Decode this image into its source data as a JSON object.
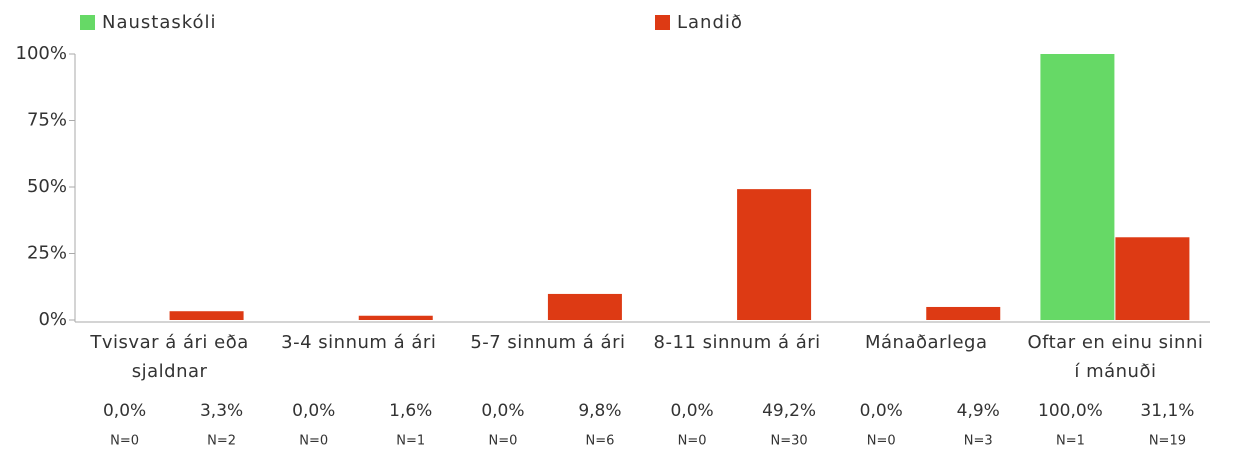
{
  "chart_data": {
    "type": "bar",
    "categories": [
      "Tvisvar á ári eða sjaldnar",
      "3-4 sinnum á ári",
      "5-7 sinnum á ári",
      "8-11 sinnum á ári",
      "Mánaðarlega",
      "Oftar en einu sinni í mánuði"
    ],
    "series": [
      {
        "name": "Naustaskóli",
        "color": "#66d966",
        "values": [
          0,
          0,
          0,
          0,
          0,
          100
        ],
        "value_labels": [
          "0,0%",
          "0,0%",
          "0,0%",
          "0,0%",
          "0,0%",
          "100,0%"
        ],
        "n_labels": [
          "N=0",
          "N=0",
          "N=0",
          "N=0",
          "N=0",
          "N=1"
        ]
      },
      {
        "name": "Landið",
        "color": "#dd3a14",
        "values": [
          3.3,
          1.6,
          9.8,
          49.2,
          4.9,
          31.1
        ],
        "value_labels": [
          "3,3%",
          "1,6%",
          "9,8%",
          "49,2%",
          "4,9%",
          "31,1%"
        ],
        "n_labels": [
          "N=2",
          "N=1",
          "N=6",
          "N=30",
          "N=3",
          "N=19"
        ]
      }
    ],
    "ylim": [
      0,
      100
    ],
    "yticks": [
      {
        "value": 0,
        "label": "0%"
      },
      {
        "value": 25,
        "label": "25%"
      },
      {
        "value": 50,
        "label": "50%"
      },
      {
        "value": 75,
        "label": "75%"
      },
      {
        "value": 100,
        "label": "100%"
      }
    ]
  }
}
